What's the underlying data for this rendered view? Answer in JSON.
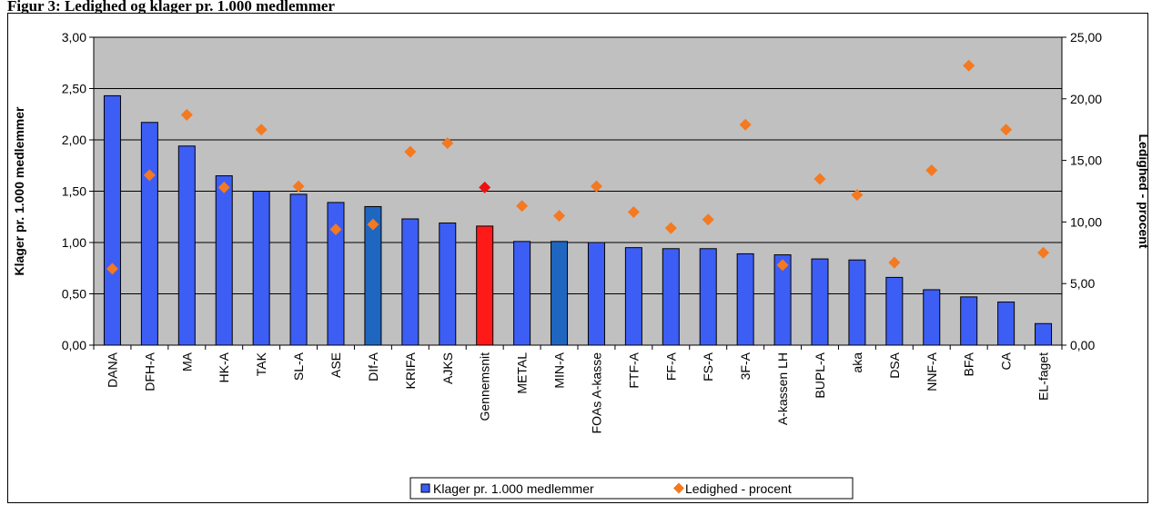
{
  "title": "Figur 3: Ledighed og klager pr. 1.000 medlemmer",
  "colors": {
    "plot_bg": "#c0c0c0",
    "bar_default": "#3c5ef5",
    "bar_highlight_blue": "#1f66c0",
    "bar_average": "#ff1a1a",
    "marker": "#f47920",
    "marker_average": "#ee1111"
  },
  "chart_data": {
    "type": "bar",
    "categories": [
      "DANA",
      "DFH-A",
      "MA",
      "HK-A",
      "TAK",
      "SL-A",
      "ASE",
      "DIf-A",
      "KRIFA",
      "AJKS",
      "Gennemsnit",
      "METAL",
      "MIN-A",
      "FOAs A-kasse",
      "FTF-A",
      "FF-A",
      "FS-A",
      "3F-A",
      "A-kassen LH",
      "BUPL-A",
      "aka",
      "DSA",
      "NNF-A",
      "BFA",
      "CA",
      "EL-faget"
    ],
    "series": [
      {
        "name": "Klager pr. 1.000 medlemmer",
        "axis": "left",
        "values": [
          2.43,
          2.17,
          1.94,
          1.65,
          1.5,
          1.47,
          1.39,
          1.35,
          1.23,
          1.19,
          1.16,
          1.01,
          1.01,
          1.0,
          0.95,
          0.94,
          0.94,
          0.89,
          0.88,
          0.84,
          0.83,
          0.66,
          0.54,
          0.47,
          0.42,
          0.21
        ]
      },
      {
        "name": "Ledighed - procent",
        "axis": "right",
        "values": [
          6.2,
          13.8,
          18.7,
          12.8,
          17.5,
          12.9,
          9.4,
          9.8,
          15.7,
          16.4,
          12.8,
          11.3,
          10.5,
          12.9,
          10.8,
          9.5,
          10.2,
          17.9,
          6.5,
          13.5,
          12.2,
          6.7,
          14.2,
          22.7,
          17.5,
          7.5
        ]
      }
    ],
    "special_bars": {
      "DIf-A": "bar_highlight_blue",
      "MIN-A": "bar_highlight_blue",
      "Gennemsnit": "bar_average"
    },
    "ylabel": "Klager pr. 1.000 medlemmer",
    "y2label": "Ledighed - procent",
    "ylim": [
      0,
      3
    ],
    "y2lim": [
      0,
      25
    ],
    "yticks": [
      "0,00",
      "0,50",
      "1,00",
      "1,50",
      "2,00",
      "2,50",
      "3,00"
    ],
    "y2ticks": [
      "0,00",
      "5,00",
      "10,00",
      "15,00",
      "20,00",
      "25,00"
    ],
    "grid": true,
    "legend_position": "bottom"
  }
}
